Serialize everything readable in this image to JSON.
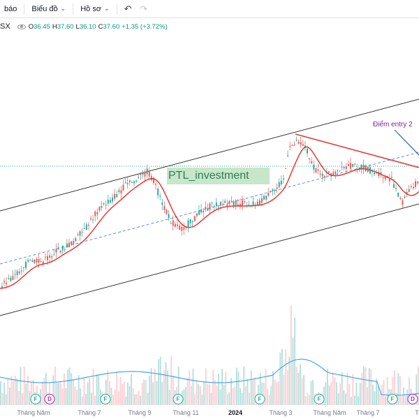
{
  "toolbar": {
    "alert_label": "báo",
    "chart_type_label": "Biểu đồ",
    "profile_label": "Hồ sơ"
  },
  "legend": {
    "symbol_suffix": "SX",
    "o_label": "O",
    "o_value": "36.45",
    "h_label": "H",
    "h_value": "37.60",
    "l_label": "L",
    "l_value": "36.10",
    "c_label": "C",
    "c_value": "37.60",
    "change": "+1.35 (+3.72%)"
  },
  "annotations": {
    "watermark": "PTL_investment",
    "entry_label": "Điểm entry 2"
  },
  "time_axis": [
    "Tháng Năm",
    "Tháng 7",
    "Tháng 9",
    "Tháng 11",
    "2024",
    "Tháng 3",
    "Tháng Năm",
    "Tháng 7",
    "T"
  ],
  "events": [
    {
      "letter": "F",
      "type": "f"
    },
    {
      "letter": "D",
      "type": "d"
    },
    {
      "letter": "F",
      "type": "f"
    },
    {
      "letter": "F",
      "type": "f"
    },
    {
      "letter": "F",
      "type": "f"
    },
    {
      "letter": "F",
      "type": "f"
    },
    {
      "letter": "F",
      "type": "f"
    },
    {
      "letter": "D",
      "type": "d"
    }
  ],
  "colors": {
    "up": "#26a69a",
    "down": "#ef5350",
    "ma": "#e53935",
    "volume_ma": "#42a5f5",
    "channel": "#000000",
    "entry_line": "#1e5fcf"
  },
  "chart_data": {
    "type": "candlestick",
    "last": {
      "open": 36.45,
      "high": 37.6,
      "low": 36.1,
      "close": 37.6,
      "change": 1.35,
      "change_pct": 3.72
    }
  }
}
